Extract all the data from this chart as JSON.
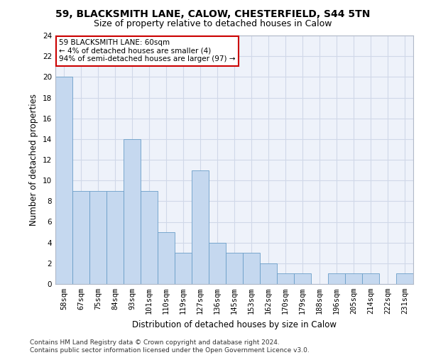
{
  "title_line1": "59, BLACKSMITH LANE, CALOW, CHESTERFIELD, S44 5TN",
  "title_line2": "Size of property relative to detached houses in Calow",
  "xlabel": "Distribution of detached houses by size in Calow",
  "ylabel": "Number of detached properties",
  "categories": [
    "58sqm",
    "67sqm",
    "75sqm",
    "84sqm",
    "93sqm",
    "101sqm",
    "110sqm",
    "119sqm",
    "127sqm",
    "136sqm",
    "145sqm",
    "153sqm",
    "162sqm",
    "170sqm",
    "179sqm",
    "188sqm",
    "196sqm",
    "205sqm",
    "214sqm",
    "222sqm",
    "231sqm"
  ],
  "values": [
    20,
    9,
    9,
    9,
    14,
    9,
    5,
    3,
    11,
    4,
    3,
    3,
    2,
    1,
    1,
    0,
    1,
    1,
    1,
    0,
    1
  ],
  "bar_color": "#c5d8ef",
  "bar_edge_color": "#6a9ec8",
  "annotation_box_text": "59 BLACKSMITH LANE: 60sqm\n← 4% of detached houses are smaller (4)\n94% of semi-detached houses are larger (97) →",
  "annotation_box_color": "#ffffff",
  "annotation_box_edge_color": "#cc0000",
  "ylim": [
    0,
    24
  ],
  "yticks": [
    0,
    2,
    4,
    6,
    8,
    10,
    12,
    14,
    16,
    18,
    20,
    22,
    24
  ],
  "grid_color": "#d0d8e8",
  "bg_color": "#eef2fa",
  "footer_text": "Contains HM Land Registry data © Crown copyright and database right 2024.\nContains public sector information licensed under the Open Government Licence v3.0.",
  "title_fontsize": 10,
  "subtitle_fontsize": 9,
  "xlabel_fontsize": 8.5,
  "ylabel_fontsize": 8.5,
  "tick_fontsize": 7.5,
  "footer_fontsize": 6.5,
  "annot_fontsize": 7.5
}
